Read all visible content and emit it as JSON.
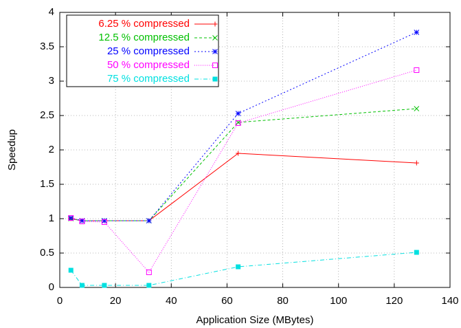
{
  "chart_data": {
    "type": "line",
    "x_label": "Application Size (MBytes)",
    "y_label": "Speedup",
    "x": [
      4,
      8,
      16,
      32,
      64,
      128
    ],
    "series": [
      {
        "name": "6.25 % compressed",
        "color": "#ff0000",
        "values": [
          1.0,
          0.97,
          0.97,
          0.97,
          1.95,
          1.81
        ]
      },
      {
        "name": "12.5 % compressed",
        "color": "#00c000",
        "values": [
          1.0,
          0.97,
          0.97,
          0.97,
          2.4,
          2.6
        ]
      },
      {
        "name": "25 % compressed",
        "color": "#0000ff",
        "values": [
          1.01,
          0.97,
          0.97,
          0.97,
          2.53,
          3.71
        ]
      },
      {
        "name": "50 % compressed",
        "color": "#ff00ff",
        "values": [
          1.01,
          0.96,
          0.95,
          0.22,
          2.39,
          3.16
        ]
      },
      {
        "name": "75 % compressed",
        "color": "#00e0e0",
        "values": [
          0.25,
          0.03,
          0.03,
          0.03,
          0.3,
          0.51
        ]
      }
    ],
    "xlim": [
      0,
      140
    ],
    "xticks": [
      0,
      20,
      40,
      60,
      80,
      100,
      120,
      140
    ],
    "ylim": [
      0,
      4
    ],
    "yticks": [
      0,
      0.5,
      1,
      1.5,
      2,
      2.5,
      3,
      3.5,
      4
    ],
    "grid": true,
    "legend": "upper-left"
  }
}
